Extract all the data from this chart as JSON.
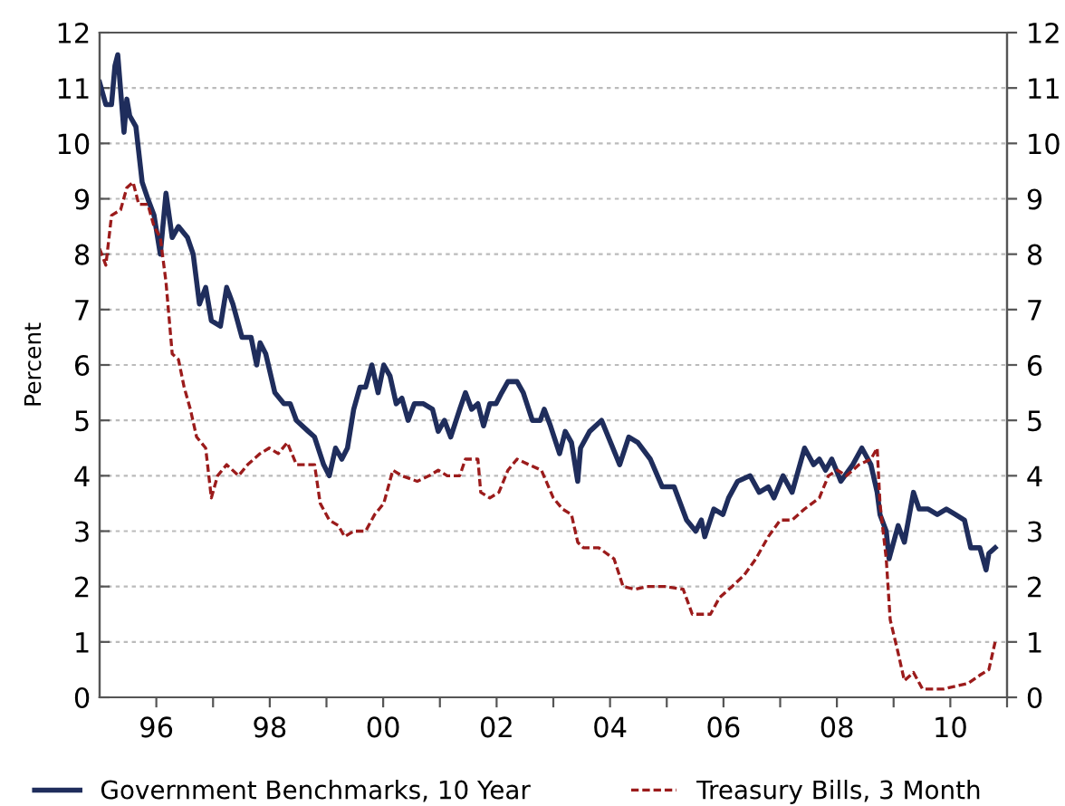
{
  "chart_data": {
    "type": "line",
    "ylabel": "Percent",
    "xlim": [
      1995,
      2011
    ],
    "xticks": [
      {
        "value": 1996,
        "label": "96"
      },
      {
        "value": 1997,
        "label": null
      },
      {
        "value": 1998,
        "label": "98"
      },
      {
        "value": 1999,
        "label": null
      },
      {
        "value": 2000,
        "label": "00"
      },
      {
        "value": 2001,
        "label": null
      },
      {
        "value": 2002,
        "label": "02"
      },
      {
        "value": 2003,
        "label": null
      },
      {
        "value": 2004,
        "label": "04"
      },
      {
        "value": 2005,
        "label": null
      },
      {
        "value": 2006,
        "label": "06"
      },
      {
        "value": 2007,
        "label": null
      },
      {
        "value": 2008,
        "label": "08"
      },
      {
        "value": 2009,
        "label": null
      },
      {
        "value": 2010,
        "label": "10"
      },
      {
        "value": 2011,
        "label": null
      }
    ],
    "ylim": [
      0,
      12
    ],
    "yticks": [
      0,
      1,
      2,
      3,
      4,
      5,
      6,
      7,
      8,
      9,
      10,
      11,
      12
    ],
    "y2lim": [
      0,
      12
    ],
    "y2ticks": [
      0,
      1,
      2,
      3,
      4,
      5,
      6,
      7,
      8,
      9,
      10,
      11,
      12
    ],
    "grid": "y",
    "legend": "bottom",
    "marker": "none",
    "series": [
      {
        "name": "Government Benchmarks, 10 Year",
        "color": "#1f2d5c",
        "line_style": "solid",
        "x": [
          1995.0,
          1995.11,
          1995.21,
          1995.27,
          1995.32,
          1995.43,
          1995.48,
          1995.53,
          1995.64,
          1995.75,
          1995.85,
          1995.96,
          1996.07,
          1996.17,
          1996.28,
          1996.39,
          1996.55,
          1996.65,
          1996.76,
          1996.87,
          1996.97,
          1997.13,
          1997.24,
          1997.35,
          1997.51,
          1997.67,
          1997.77,
          1997.83,
          1997.93,
          1998.09,
          1998.25,
          1998.36,
          1998.47,
          1998.68,
          1998.79,
          1998.95,
          1999.05,
          1999.16,
          1999.27,
          1999.37,
          1999.48,
          1999.59,
          1999.69,
          1999.8,
          1999.91,
          2000.01,
          2000.12,
          2000.23,
          2000.33,
          2000.44,
          2000.55,
          2000.71,
          2000.87,
          2000.97,
          2001.08,
          2001.19,
          2001.35,
          2001.45,
          2001.56,
          2001.67,
          2001.77,
          2001.88,
          2001.99,
          2002.09,
          2002.2,
          2002.36,
          2002.47,
          2002.63,
          2002.77,
          2002.84,
          2002.95,
          2003.11,
          2003.21,
          2003.32,
          2003.43,
          2003.48,
          2003.64,
          2003.85,
          2004.01,
          2004.17,
          2004.33,
          2004.49,
          2004.71,
          2004.92,
          2005.13,
          2005.35,
          2005.51,
          2005.61,
          2005.67,
          2005.83,
          2005.99,
          2006.09,
          2006.25,
          2006.47,
          2006.63,
          2006.79,
          2006.89,
          2007.05,
          2007.21,
          2007.43,
          2007.59,
          2007.69,
          2007.8,
          2007.91,
          2008.07,
          2008.28,
          2008.44,
          2008.6,
          2008.71,
          2008.76,
          2008.87,
          2008.92,
          2009.08,
          2009.19,
          2009.35,
          2009.45,
          2009.61,
          2009.77,
          2009.93,
          2010.09,
          2010.25,
          2010.36,
          2010.52,
          2010.63,
          2010.68,
          2010.79
        ],
        "values": [
          11.1,
          10.7,
          10.7,
          11.4,
          11.6,
          10.2,
          10.8,
          10.5,
          10.3,
          9.3,
          9.0,
          8.7,
          8.0,
          9.1,
          8.3,
          8.5,
          8.3,
          8.0,
          7.1,
          7.4,
          6.8,
          6.7,
          7.4,
          7.1,
          6.5,
          6.5,
          6.0,
          6.4,
          6.2,
          5.5,
          5.3,
          5.3,
          5.0,
          4.8,
          4.7,
          4.2,
          4.0,
          4.5,
          4.3,
          4.5,
          5.2,
          5.6,
          5.6,
          6.0,
          5.5,
          6.0,
          5.8,
          5.3,
          5.4,
          5.0,
          5.3,
          5.3,
          5.2,
          4.8,
          5.0,
          4.7,
          5.2,
          5.5,
          5.2,
          5.3,
          4.9,
          5.3,
          5.3,
          5.5,
          5.7,
          5.7,
          5.5,
          5.0,
          5.0,
          5.2,
          4.9,
          4.4,
          4.8,
          4.6,
          3.9,
          4.5,
          4.8,
          5.0,
          4.6,
          4.2,
          4.7,
          4.6,
          4.3,
          3.8,
          3.8,
          3.2,
          3.0,
          3.2,
          2.9,
          3.4,
          3.3,
          3.6,
          3.9,
          4.0,
          3.7,
          3.8,
          3.6,
          4.0,
          3.7,
          4.5,
          4.2,
          4.3,
          4.1,
          4.3,
          3.9,
          4.2,
          4.5,
          4.2,
          3.7,
          3.3,
          3.0,
          2.5,
          3.1,
          2.8,
          3.7,
          3.4,
          3.4,
          3.3,
          3.4,
          3.3,
          3.2,
          2.7,
          2.7,
          2.3,
          2.6,
          2.7
        ]
      },
      {
        "name": "Treasury Bills, 3 Month",
        "color": "#9b1b1b",
        "line_style": "dashed",
        "x": [
          1995.0,
          1995.11,
          1995.21,
          1995.37,
          1995.48,
          1995.59,
          1995.69,
          1995.85,
          1995.96,
          1996.07,
          1996.17,
          1996.28,
          1996.39,
          1996.49,
          1996.6,
          1996.71,
          1996.87,
          1996.97,
          1997.08,
          1997.24,
          1997.45,
          1997.61,
          1997.83,
          1997.99,
          1998.15,
          1998.31,
          1998.47,
          1998.63,
          1998.79,
          1998.89,
          1999.05,
          1999.21,
          1999.32,
          1999.48,
          1999.69,
          1999.85,
          2000.01,
          2000.17,
          2000.33,
          2000.6,
          2000.81,
          2000.97,
          2001.13,
          2001.35,
          2001.45,
          2001.67,
          2001.72,
          2001.88,
          2002.04,
          2002.2,
          2002.36,
          2002.57,
          2002.79,
          2003.0,
          2003.16,
          2003.32,
          2003.43,
          2003.53,
          2003.8,
          2004.07,
          2004.23,
          2004.44,
          2004.65,
          2004.97,
          2005.29,
          2005.45,
          2005.77,
          2005.93,
          2006.15,
          2006.36,
          2006.57,
          2006.79,
          2007.0,
          2007.21,
          2007.43,
          2007.69,
          2007.85,
          2008.01,
          2008.17,
          2008.39,
          2008.6,
          2008.71,
          2008.76,
          2008.87,
          2008.94,
          2009.08,
          2009.19,
          2009.35,
          2009.51,
          2009.67,
          2009.88,
          2010.09,
          2010.31,
          2010.52,
          2010.68,
          2010.79
        ],
        "values": [
          8.1,
          7.8,
          8.7,
          8.8,
          9.2,
          9.3,
          8.9,
          8.9,
          8.5,
          8.3,
          7.5,
          6.2,
          6.1,
          5.6,
          5.2,
          4.7,
          4.5,
          3.6,
          4.0,
          4.2,
          4.0,
          4.2,
          4.4,
          4.5,
          4.4,
          4.6,
          4.2,
          4.2,
          4.2,
          3.5,
          3.2,
          3.1,
          2.9,
          3.0,
          3.0,
          3.3,
          3.5,
          4.1,
          4.0,
          3.9,
          4.0,
          4.1,
          4.0,
          4.0,
          4.3,
          4.3,
          3.7,
          3.6,
          3.7,
          4.1,
          4.3,
          4.2,
          4.1,
          3.6,
          3.4,
          3.3,
          2.8,
          2.7,
          2.7,
          2.5,
          2.0,
          1.95,
          2.0,
          2.0,
          1.95,
          1.5,
          1.5,
          1.8,
          2.0,
          2.2,
          2.5,
          2.9,
          3.2,
          3.2,
          3.4,
          3.6,
          4.0,
          4.1,
          4.0,
          4.2,
          4.3,
          4.5,
          3.5,
          2.5,
          1.4,
          0.8,
          0.3,
          0.45,
          0.15,
          0.15,
          0.15,
          0.2,
          0.25,
          0.4,
          0.5,
          1.0
        ]
      }
    ]
  }
}
